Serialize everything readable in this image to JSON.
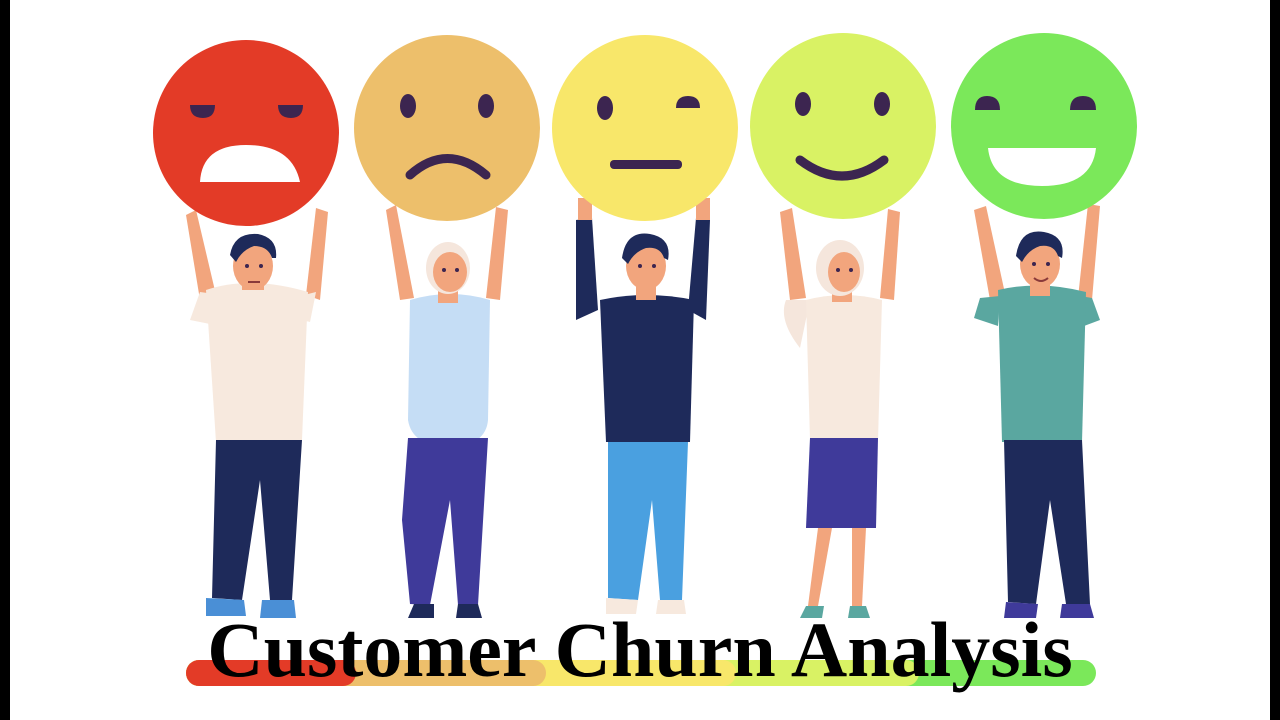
{
  "title": "Customer Churn Analysis",
  "colors": {
    "angry": "#e33b27",
    "sad": "#edbf6b",
    "neutral": "#f8e76a",
    "happy": "#d9f264",
    "very_happy": "#7be85a",
    "face_features": "#3c2550",
    "hair": "#1e2a5a",
    "skin": "#f2a57d"
  },
  "faces": [
    {
      "mood": "angry",
      "icon": "angry-face-icon"
    },
    {
      "mood": "sad",
      "icon": "sad-face-icon"
    },
    {
      "mood": "neutral",
      "icon": "neutral-face-icon"
    },
    {
      "mood": "happy",
      "icon": "smiling-face-icon"
    },
    {
      "mood": "very_happy",
      "icon": "laughing-face-icon"
    }
  ],
  "satisfaction_scale": [
    "angry",
    "sad",
    "neutral",
    "happy",
    "very_happy"
  ]
}
